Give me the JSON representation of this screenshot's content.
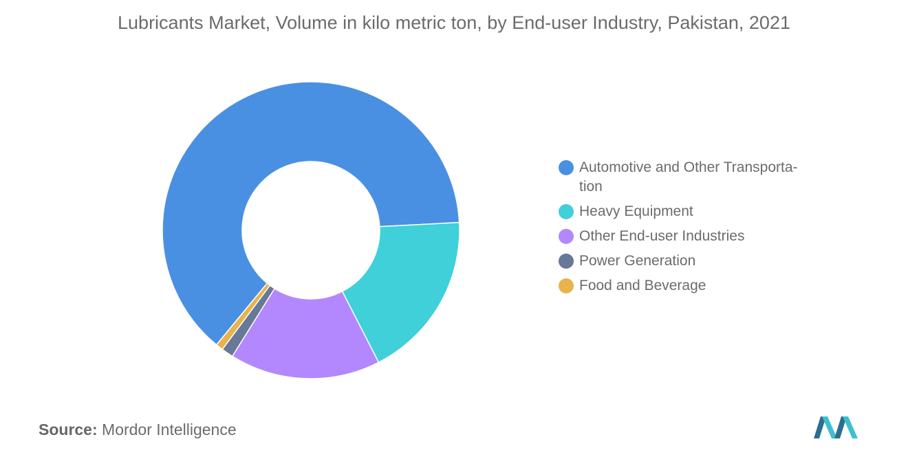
{
  "title": "Lubricants Market, Volume in kilo metric ton, by End-user Industry, Pakistan, 2021",
  "source": {
    "label": "Source:",
    "value": "Mordor Intelligence"
  },
  "logo_icon": "mordor-intelligence-logo",
  "chart_data": {
    "type": "pie",
    "donut": true,
    "title": "Lubricants Market, Volume in kilo metric ton, by End-user Industry, Pakistan, 2021",
    "legend_position": "right",
    "series": [
      {
        "name": "Automotive and Other Transporta-tion",
        "value": 63.2,
        "color": "#4a90e2"
      },
      {
        "name": "Heavy Equipment",
        "value": 18.3,
        "color": "#3fd0d9"
      },
      {
        "name": "Other End-user Industries",
        "value": 16.4,
        "color": "#b388ff"
      },
      {
        "name": "Power Generation",
        "value": 1.3,
        "color": "#687897"
      },
      {
        "name": "Food and Beverage",
        "value": 0.8,
        "color": "#e8b34b"
      }
    ]
  }
}
